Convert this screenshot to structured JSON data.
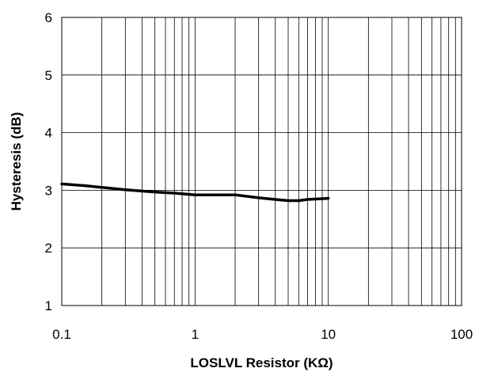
{
  "chart_data": {
    "type": "line",
    "title": "",
    "xlabel": "LOSLVL Resistor (KΩ)",
    "ylabel": "Hysteresis (dB)",
    "x_scale": "log",
    "xlim": [
      0.1,
      100
    ],
    "ylim": [
      1,
      6
    ],
    "grid": true,
    "legend": "none",
    "x_ticks": [
      0.1,
      1,
      10,
      100
    ],
    "x_tick_labels": [
      "0.1",
      "1",
      "10",
      "100"
    ],
    "y_ticks": [
      1,
      2,
      3,
      4,
      5,
      6
    ],
    "y_tick_labels": [
      "1",
      "2",
      "3",
      "4",
      "5",
      "6"
    ],
    "series": [
      {
        "color": "#000000",
        "x": [
          0.1,
          0.15,
          0.2,
          0.3,
          0.5,
          0.7,
          1,
          1.5,
          2,
          3,
          4,
          5,
          6,
          7,
          10
        ],
        "y": [
          3.11,
          3.08,
          3.05,
          3.01,
          2.97,
          2.95,
          2.92,
          2.92,
          2.92,
          2.87,
          2.84,
          2.82,
          2.82,
          2.84,
          2.86
        ]
      }
    ]
  }
}
